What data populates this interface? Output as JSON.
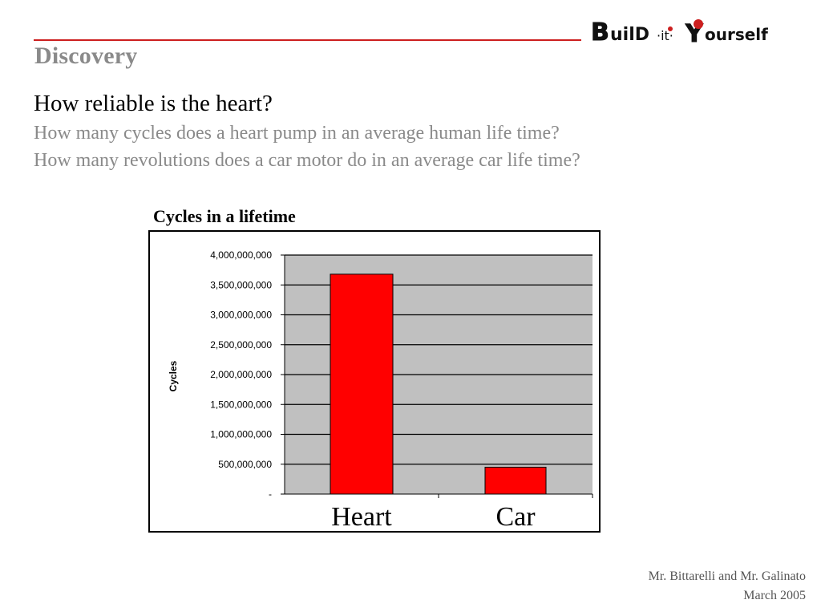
{
  "header": {
    "section_title": "Discovery",
    "logo_text": "Build-it-Yourself",
    "accent_color": "#cc1f1f"
  },
  "questions": {
    "main": "How reliable is the heart?",
    "sub": [
      "How many cycles does a heart pump in an average human life time?",
      "How many revolutions does a car motor do in an average car life time?"
    ]
  },
  "chart_data": {
    "type": "bar",
    "title": "Cycles in a lifetime",
    "ylabel": "Cycles",
    "xlabel": "",
    "categories": [
      "Heart",
      "Car"
    ],
    "values": [
      3680000000,
      450000000
    ],
    "ylim": [
      0,
      4000000000
    ],
    "yticks": [
      {
        "value": 0,
        "label": "-"
      },
      {
        "value": 500000000,
        "label": "500,000,000"
      },
      {
        "value": 1000000000,
        "label": "1,000,000,000"
      },
      {
        "value": 1500000000,
        "label": "1,500,000,000"
      },
      {
        "value": 2000000000,
        "label": "2,000,000,000"
      },
      {
        "value": 2500000000,
        "label": "2,500,000,000"
      },
      {
        "value": 3000000000,
        "label": "3,000,000,000"
      },
      {
        "value": 3500000000,
        "label": "3,500,000,000"
      },
      {
        "value": 4000000000,
        "label": "4,000,000,000"
      }
    ],
    "grid": true,
    "bar_color": "#ff0000",
    "plot_background": "#c0c0c0"
  },
  "footer": {
    "author": "Mr. Bittarelli and Mr. Galinato",
    "date": "March 2005"
  }
}
